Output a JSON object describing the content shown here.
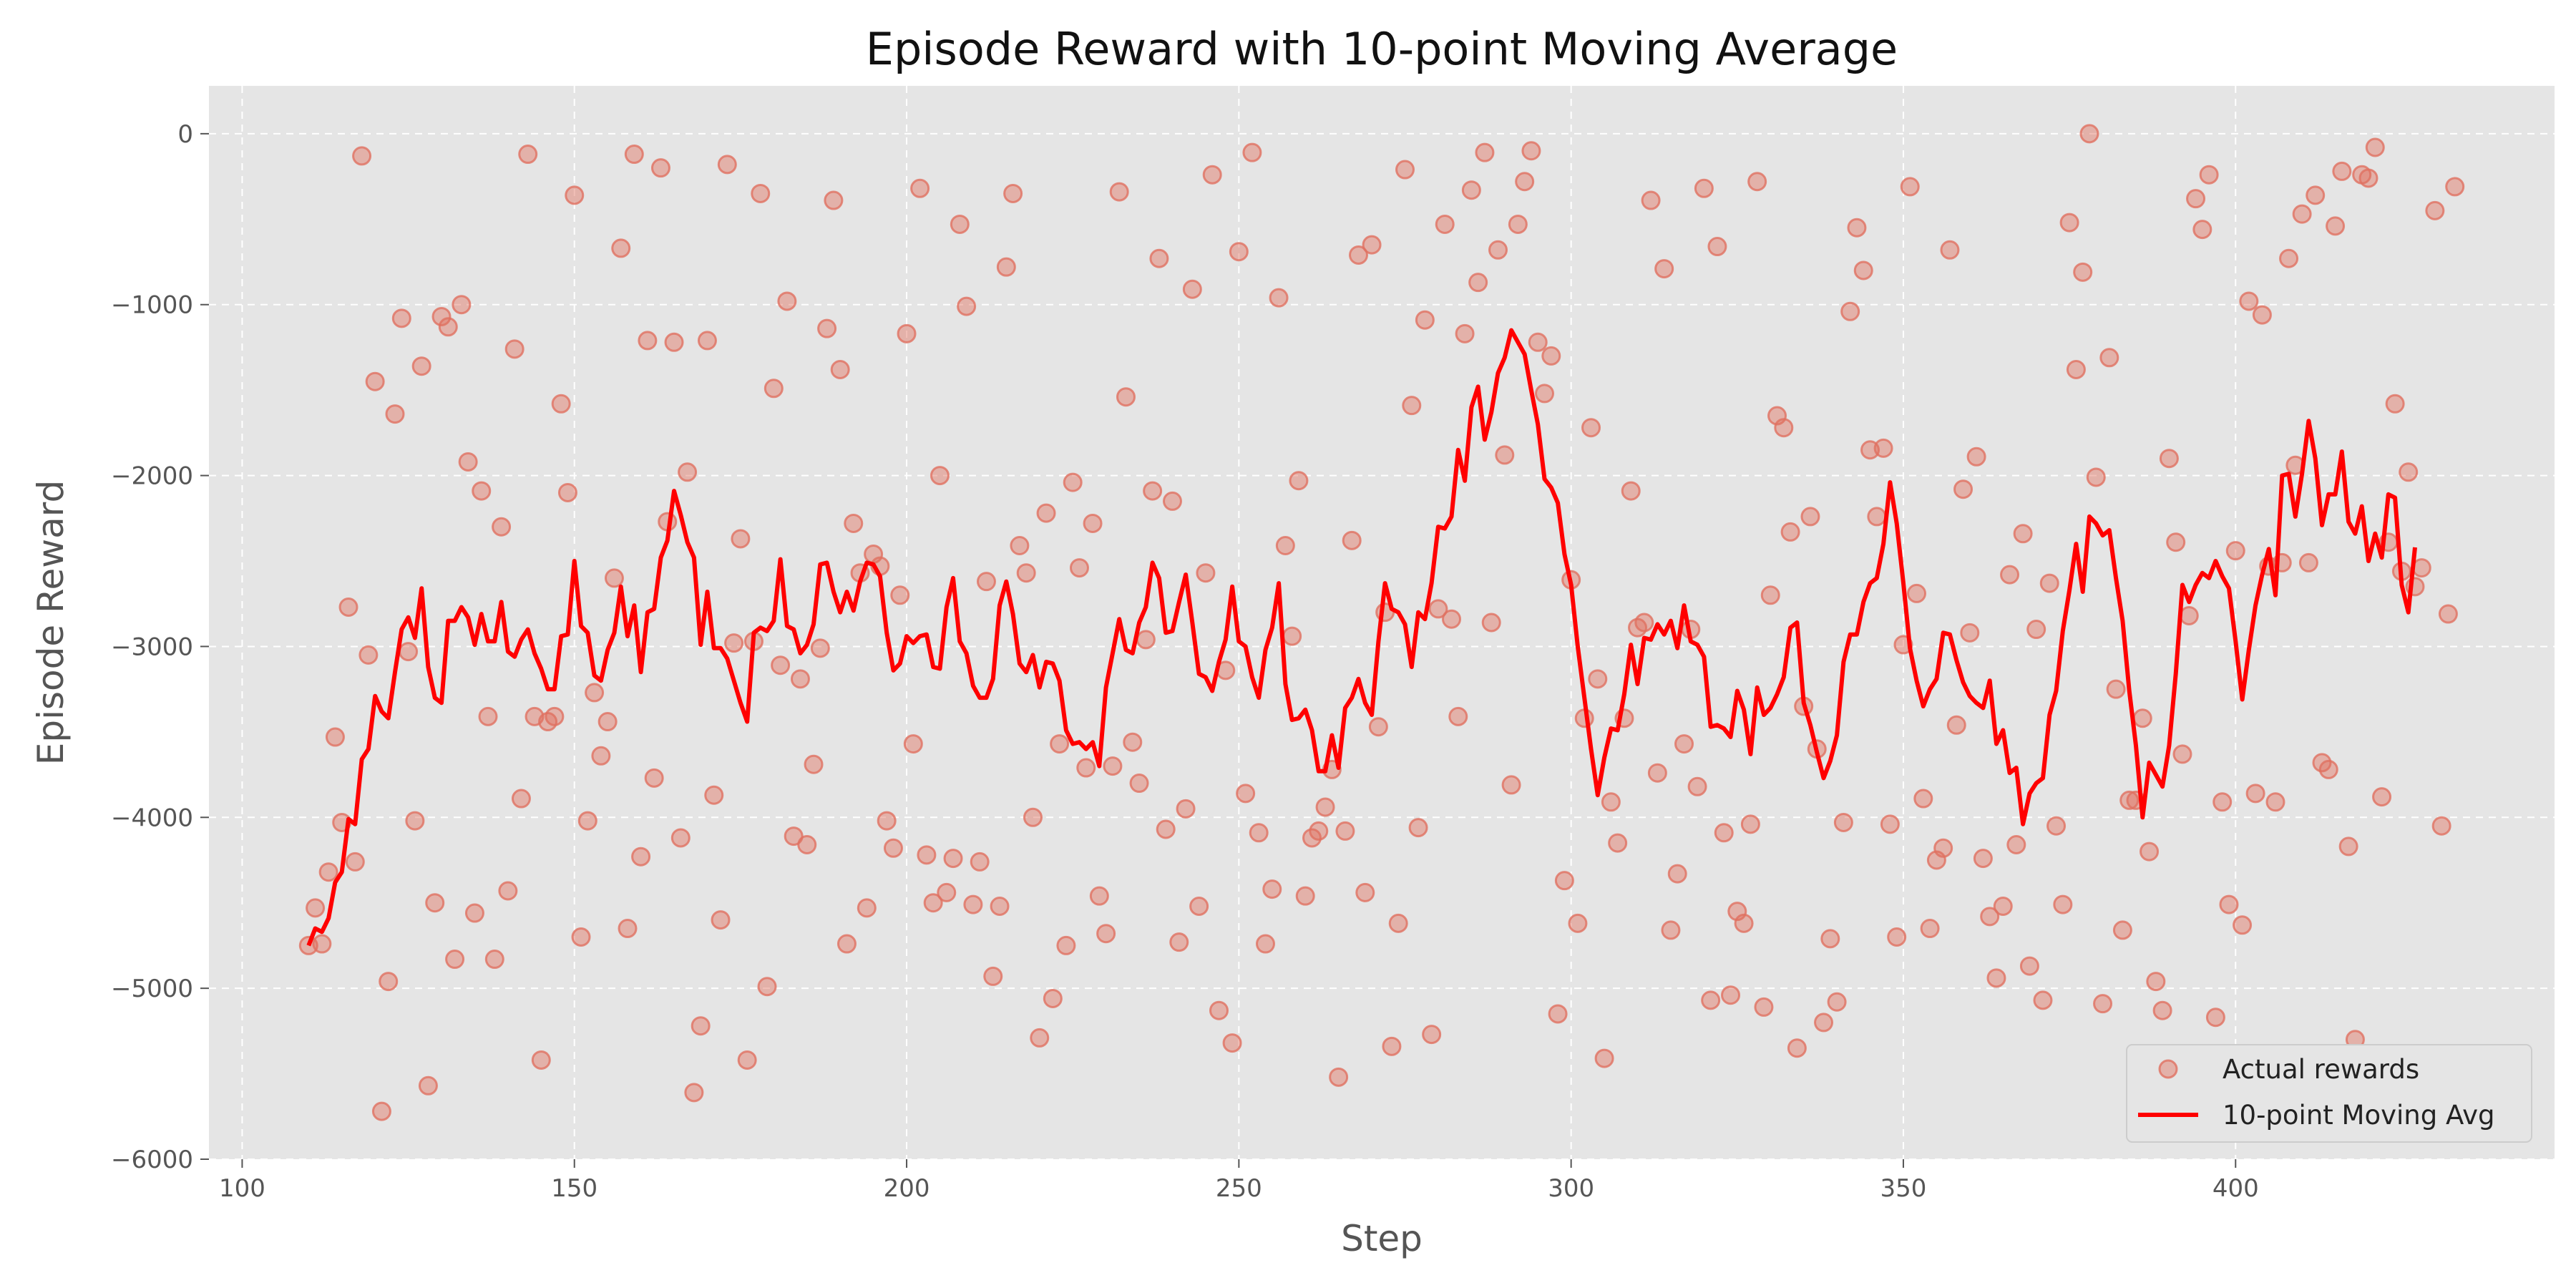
{
  "chart_data": {
    "type": "scatter",
    "title": "Episode Reward with 10-point Moving Average",
    "xlabel": "Step",
    "ylabel": "Episode Reward",
    "xlim": [
      95,
      448
    ],
    "ylim": [
      -6000,
      280
    ],
    "xticks": [
      100,
      150,
      200,
      250,
      300,
      350,
      400
    ],
    "yticks": [
      0,
      -1000,
      -2000,
      -3000,
      -4000,
      -5000,
      -6000
    ],
    "x_tick_labels": [
      "100",
      "150",
      "200",
      "250",
      "300",
      "350",
      "400"
    ],
    "y_tick_labels": [
      "0",
      "−1000",
      "−2000",
      "−3000",
      "−4000",
      "−5000",
      "−6000"
    ],
    "grid": true,
    "legend": "lower-right",
    "colors": {
      "background": "#e5e5e5",
      "grid": "#ffffff",
      "points": "#e07060",
      "line": "#ff0000"
    },
    "series": [
      {
        "name": "Actual rewards",
        "type": "scatter",
        "x_start": 110,
        "x_step": 1,
        "values": [
          -4750,
          -4530,
          -4740,
          -4320,
          -3530,
          -4030,
          -2770,
          -4260,
          -130,
          -3050,
          -1450,
          -5720,
          -4960,
          -1640,
          -1080,
          -3030,
          -4020,
          -1360,
          -5570,
          -4500,
          -1070,
          -1130,
          -4830,
          -1000,
          -1920,
          -4560,
          -2090,
          -3410,
          -4830,
          -2300,
          -4430,
          -1260,
          -3890,
          -120,
          -3410,
          -5420,
          -3440,
          -3410,
          -1580,
          -2100,
          -360,
          -4700,
          -4020,
          -3270,
          -3640,
          -3440,
          -2600,
          -670,
          -4650,
          -120,
          -4230,
          -1210,
          -3770,
          -200,
          -2270,
          -1220,
          -4120,
          -1980,
          -5610,
          -5220,
          -1210,
          -3870,
          -4600,
          -180,
          -2980,
          -2370,
          -5420,
          -2970,
          -350,
          -4990,
          -1490,
          -3110,
          -980,
          -4110,
          -3190,
          -4160,
          -3690,
          -3010,
          -1140,
          -390,
          -1380,
          -4740,
          -2280,
          -2570,
          -4530,
          -2460,
          -2530,
          -4020,
          -4180,
          -2700,
          -1170,
          -3570,
          -320,
          -4220,
          -4500,
          -2000,
          -4440,
          -4240,
          -530,
          -1010,
          -4510,
          -4260,
          -2620,
          -4930,
          -4520,
          -780,
          -350,
          -2410,
          -2570,
          -4000,
          -5290,
          -2220,
          -5060,
          -3570,
          -4750,
          -2040,
          -2540,
          -3710,
          -2280,
          -4460,
          -4680,
          -3700,
          -340,
          -1540,
          -3560,
          -3800,
          -2960,
          -2090,
          -730,
          -4070,
          -2150,
          -4730,
          -3950,
          -910,
          -4520,
          -2570,
          -240,
          -5130,
          -3140,
          -5320,
          -690,
          -3860,
          -110,
          -4090,
          -4740,
          -4420,
          -960,
          -2410,
          -2940,
          -2030,
          -4460,
          -4120,
          -4080,
          -3940,
          -3720,
          -5520,
          -4080,
          -2380,
          -710,
          -4440,
          -650,
          -3470,
          -2800,
          -5340,
          -4620,
          -210,
          -1590,
          -4060,
          -1090,
          -5270,
          -2780,
          -530,
          -2840,
          -3410,
          -1170,
          -330,
          -870,
          -110,
          -2860,
          -680,
          -1880,
          -3810,
          -530,
          -280,
          -100,
          -1220,
          -1520,
          -1300,
          -5150,
          -4370,
          -2610,
          -4620,
          -3420,
          -1720,
          -3190,
          -5410,
          -3910,
          -4150,
          -3420,
          -2090,
          -2890,
          -2860,
          -390,
          -3740,
          -790,
          -4660,
          -4330,
          -3570,
          -2900,
          -3820,
          -320,
          -5070,
          -660,
          -4090,
          -5040,
          -4550,
          -4620,
          -4040,
          -280,
          -5110,
          -2700,
          -1650,
          -1720,
          -2330,
          -5350,
          -3350,
          -2240,
          -3600,
          -5200,
          -4710,
          -5080,
          -4030,
          -1040,
          -550,
          -800,
          -1850,
          -2240,
          -1840,
          -4040,
          -4700,
          -2990,
          -310,
          -2690,
          -3890,
          -4650,
          -4250,
          -4180,
          -680,
          -3460,
          -2080,
          -2920,
          -1890,
          -4240,
          -4580,
          -4940,
          -4520,
          -2580,
          -4160,
          -2340,
          -4870,
          -2900,
          -5070,
          -2630,
          -4050,
          -4510,
          -520,
          -1380,
          -810,
          0,
          -2010,
          -5090,
          -1310,
          -3250,
          -4660,
          -3900,
          -3900,
          -3420,
          -4200,
          -4960,
          -5130,
          -1900,
          -2390,
          -3630,
          -2820,
          -380,
          -560,
          -240,
          -5170,
          -3910,
          -4510,
          -2440,
          -4630,
          -980,
          -3860,
          -1060,
          -2530,
          -3910,
          -2510,
          -730,
          -1940,
          -470,
          -2510,
          -360,
          -3680,
          -3720,
          -540,
          -220,
          -4170,
          -5300,
          -240,
          -260,
          -80,
          -3880,
          -2390,
          -1580,
          -2560,
          -1980,
          -2650,
          -2540,
          -5450,
          -450,
          -4050,
          -2810,
          -310
        ]
      },
      {
        "name": "10-point Moving Avg",
        "type": "line",
        "x_start": 110,
        "x_step": 1,
        "values": [
          -4750,
          -4650,
          -4670,
          -4590,
          -4380,
          -4320,
          -4010,
          -4040,
          -3660,
          -3600,
          -3290,
          -3380,
          -3420,
          -3150,
          -2900,
          -2830,
          -2950,
          -2660,
          -3120,
          -3300,
          -3330,
          -2850,
          -2850,
          -2770,
          -2830,
          -2990,
          -2810,
          -2970,
          -2970,
          -2740,
          -3030,
          -3060,
          -2960,
          -2900,
          -3040,
          -3130,
          -3250,
          -3250,
          -2940,
          -2930,
          -2500,
          -2880,
          -2920,
          -3170,
          -3200,
          -3020,
          -2920,
          -2650,
          -2940,
          -2760,
          -3150,
          -2800,
          -2780,
          -2480,
          -2380,
          -2090,
          -2230,
          -2390,
          -2480,
          -2990,
          -2680,
          -3010,
          -3010,
          -3070,
          -3200,
          -3330,
          -3440,
          -2920,
          -2890,
          -2910,
          -2850,
          -2490,
          -2880,
          -2900,
          -3040,
          -2990,
          -2870,
          -2520,
          -2510,
          -2680,
          -2800,
          -2680,
          -2790,
          -2620,
          -2510,
          -2520,
          -2590,
          -2920,
          -3140,
          -3100,
          -2940,
          -2980,
          -2940,
          -2930,
          -3120,
          -3130,
          -2770,
          -2600,
          -2970,
          -3040,
          -3230,
          -3300,
          -3300,
          -3190,
          -2760,
          -2620,
          -2810,
          -3100,
          -3150,
          -3050,
          -3240,
          -3090,
          -3100,
          -3200,
          -3490,
          -3570,
          -3560,
          -3600,
          -3560,
          -3700,
          -3240,
          -3040,
          -2840,
          -3020,
          -3040,
          -2860,
          -2770,
          -2510,
          -2600,
          -2920,
          -2910,
          -2740,
          -2580,
          -2860,
          -3160,
          -3180,
          -3260,
          -3090,
          -2960,
          -2650,
          -2970,
          -3000,
          -3180,
          -3300,
          -3020,
          -2890,
          -2630,
          -3220,
          -3430,
          -3420,
          -3370,
          -3490,
          -3730,
          -3730,
          -3520,
          -3710,
          -3360,
          -3300,
          -3190,
          -3330,
          -3400,
          -2970,
          -2630,
          -2780,
          -2800,
          -2870,
          -3120,
          -2800,
          -2840,
          -2630,
          -2300,
          -2310,
          -2240,
          -1850,
          -2030,
          -1600,
          -1480,
          -1790,
          -1630,
          -1400,
          -1310,
          -1150,
          -1220,
          -1290,
          -1500,
          -1700,
          -2020,
          -2070,
          -2160,
          -2460,
          -2640,
          -3000,
          -3300,
          -3600,
          -3870,
          -3650,
          -3480,
          -3490,
          -3280,
          -2990,
          -3220,
          -2950,
          -2960,
          -2870,
          -2930,
          -2850,
          -3010,
          -2760,
          -2970,
          -2990,
          -3060,
          -3470,
          -3460,
          -3480,
          -3530,
          -3260,
          -3370,
          -3630,
          -3240,
          -3400,
          -3360,
          -3280,
          -3180,
          -2890,
          -2860,
          -3330,
          -3460,
          -3620,
          -3770,
          -3670,
          -3520,
          -3090,
          -2930,
          -2930,
          -2740,
          -2630,
          -2600,
          -2400,
          -2040,
          -2280,
          -2630,
          -3010,
          -3200,
          -3350,
          -3250,
          -3190,
          -2920,
          -2930,
          -3080,
          -3210,
          -3290,
          -3330,
          -3360,
          -3200,
          -3570,
          -3490,
          -3740,
          -3710,
          -4040,
          -3860,
          -3800,
          -3770,
          -3400,
          -3260,
          -2910,
          -2670,
          -2400,
          -2680,
          -2240,
          -2280,
          -2350,
          -2320,
          -2600,
          -2850,
          -3260,
          -3580,
          -4000,
          -3680,
          -3750,
          -3820,
          -3580,
          -3160,
          -2640,
          -2740,
          -2640,
          -2570,
          -2600,
          -2500,
          -2590,
          -2660,
          -2970,
          -3310,
          -3020,
          -2760,
          -2580,
          -2430,
          -2700,
          -2000,
          -1990,
          -2240,
          -1990,
          -1680,
          -1900,
          -2290,
          -2110,
          -2110,
          -1860,
          -2270,
          -2340,
          -2180,
          -2500,
          -2340,
          -2480,
          -2110,
          -2130,
          -2640,
          -2800,
          -2420
        ]
      }
    ]
  }
}
